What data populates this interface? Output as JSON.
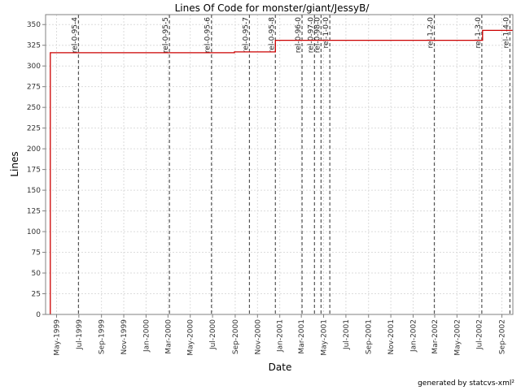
{
  "chart_data": {
    "type": "line",
    "title": "Lines Of Code for monster/giant/JessyB/",
    "xlabel": "Date",
    "ylabel": "Lines",
    "ylim": [
      0,
      362
    ],
    "y_ticks": [
      0,
      25,
      50,
      75,
      100,
      125,
      150,
      175,
      200,
      225,
      250,
      275,
      300,
      325,
      350
    ],
    "x_ticks": [
      {
        "label": "May-1999",
        "date": "1999-05-01"
      },
      {
        "label": "Jul-1999",
        "date": "1999-07-01"
      },
      {
        "label": "Sep-1999",
        "date": "1999-09-01"
      },
      {
        "label": "Nov-1999",
        "date": "1999-11-01"
      },
      {
        "label": "Jan-2000",
        "date": "2000-01-01"
      },
      {
        "label": "Mar-2000",
        "date": "2000-03-01"
      },
      {
        "label": "May-2000",
        "date": "2000-05-01"
      },
      {
        "label": "Jul-2000",
        "date": "2000-07-01"
      },
      {
        "label": "Sep-2000",
        "date": "2000-09-01"
      },
      {
        "label": "Nov-2000",
        "date": "2000-11-01"
      },
      {
        "label": "Jan-2001",
        "date": "2001-01-01"
      },
      {
        "label": "Mar-2001",
        "date": "2001-03-01"
      },
      {
        "label": "May-2001",
        "date": "2001-05-01"
      },
      {
        "label": "Jul-2001",
        "date": "2001-07-01"
      },
      {
        "label": "Sep-2001",
        "date": "2001-09-01"
      },
      {
        "label": "Nov-2001",
        "date": "2001-11-01"
      },
      {
        "label": "Jan-2002",
        "date": "2002-01-01"
      },
      {
        "label": "Mar-2002",
        "date": "2002-03-01"
      },
      {
        "label": "May-2002",
        "date": "2002-05-01"
      },
      {
        "label": "Jul-2002",
        "date": "2002-07-01"
      },
      {
        "label": "Sep-2002",
        "date": "2002-09-01"
      }
    ],
    "x_range": [
      "1999-04-01",
      "2002-10-01"
    ],
    "series": [
      {
        "color": "#cc0000",
        "step": true,
        "points": [
          {
            "date": "1999-04-14",
            "value": 0
          },
          {
            "date": "1999-04-14",
            "value": 316
          },
          {
            "date": "2000-08-30",
            "value": 316
          },
          {
            "date": "2000-08-30",
            "value": 317
          },
          {
            "date": "2000-12-20",
            "value": 317
          },
          {
            "date": "2000-12-20",
            "value": 331
          },
          {
            "date": "2002-07-10",
            "value": 331
          },
          {
            "date": "2002-07-10",
            "value": 343
          },
          {
            "date": "2002-09-30",
            "value": 343
          }
        ]
      }
    ],
    "markers": [
      {
        "label": "rel-0-95-4",
        "date": "1999-06-30"
      },
      {
        "label": "rel-0-95-5",
        "date": "2000-03-05"
      },
      {
        "label": "rel-0-95-6",
        "date": "2000-06-28"
      },
      {
        "label": "rel-0-95-7",
        "date": "2000-10-10"
      },
      {
        "label": "rel-0-95-8",
        "date": "2000-12-20"
      },
      {
        "label": "rel-0-96-0",
        "date": "2001-03-03"
      },
      {
        "label": "rel-0-97-0",
        "date": "2001-04-06"
      },
      {
        "label": "rel-0-98-0",
        "date": "2001-04-24"
      },
      {
        "label": "rel-1-0-0",
        "date": "2001-05-18"
      },
      {
        "label": "rel-1-2-0",
        "date": "2002-02-28"
      },
      {
        "label": "rel-1-3-0",
        "date": "2002-07-08"
      },
      {
        "label": "rel-1-4-0",
        "date": "2002-09-23"
      }
    ],
    "grid": true,
    "legend": "none",
    "credit": "generated by statcvs-xml²"
  }
}
